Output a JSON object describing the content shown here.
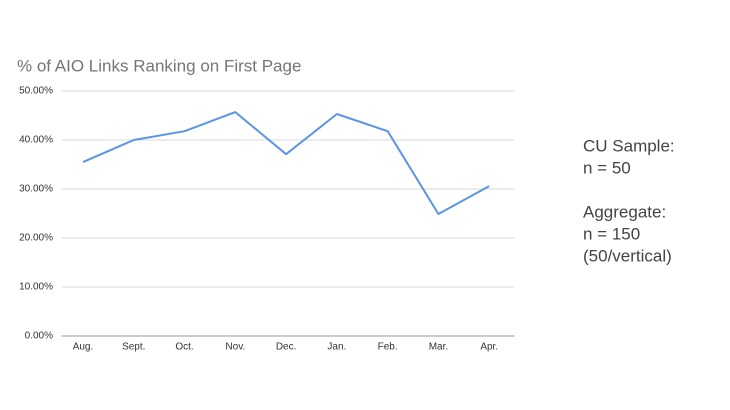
{
  "chart_data": {
    "type": "line",
    "title": "% of AIO Links Ranking on First Page",
    "categories": [
      "Aug.",
      "Sept.",
      "Oct.",
      "Nov.",
      "Dec.",
      "Jan.",
      "Feb.",
      "Mar.",
      "Apr."
    ],
    "values": [
      35.5,
      40,
      41.8,
      45.7,
      37.1,
      45.3,
      41.8,
      24.9,
      30.6
    ],
    "color": "#5b95e3",
    "ylim": [
      0,
      50
    ],
    "yticks": [
      {
        "value": 0,
        "label": "0.00%"
      },
      {
        "value": 10,
        "label": "10.00%"
      },
      {
        "value": 20,
        "label": "20.00%"
      },
      {
        "value": 30,
        "label": "30.00%"
      },
      {
        "value": 40,
        "label": "40.00%"
      },
      {
        "value": 50,
        "label": "50.00%"
      }
    ],
    "grid": true,
    "annotations": [
      "CU Sample:",
      "n = 50",
      "Aggregate:",
      "n = 150",
      "(50/vertical)"
    ]
  }
}
